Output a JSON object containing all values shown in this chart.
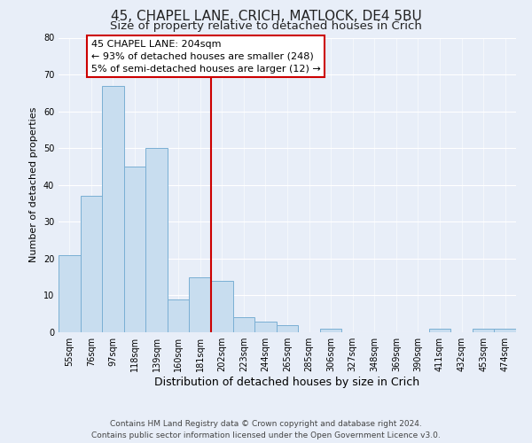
{
  "title": "45, CHAPEL LANE, CRICH, MATLOCK, DE4 5BU",
  "subtitle": "Size of property relative to detached houses in Crich",
  "xlabel": "Distribution of detached houses by size in Crich",
  "ylabel": "Number of detached properties",
  "bar_labels": [
    "55sqm",
    "76sqm",
    "97sqm",
    "118sqm",
    "139sqm",
    "160sqm",
    "181sqm",
    "202sqm",
    "223sqm",
    "244sqm",
    "265sqm",
    "285sqm",
    "306sqm",
    "327sqm",
    "348sqm",
    "369sqm",
    "390sqm",
    "411sqm",
    "432sqm",
    "453sqm",
    "474sqm"
  ],
  "bar_values": [
    21,
    37,
    67,
    45,
    50,
    9,
    15,
    14,
    4,
    3,
    2,
    0,
    1,
    0,
    0,
    0,
    0,
    1,
    0,
    1,
    1
  ],
  "bar_color": "#c8ddef",
  "bar_edge_color": "#7aafd4",
  "vline_color": "#cc0000",
  "annotation_title": "45 CHAPEL LANE: 204sqm",
  "annotation_line1": "← 93% of detached houses are smaller (248)",
  "annotation_line2": "5% of semi-detached houses are larger (12) →",
  "annotation_box_facecolor": "#ffffff",
  "annotation_box_edgecolor": "#cc0000",
  "ylim": [
    0,
    80
  ],
  "yticks": [
    0,
    10,
    20,
    30,
    40,
    50,
    60,
    70,
    80
  ],
  "background_color": "#e8eef8",
  "grid_color": "#ffffff",
  "footer_line1": "Contains HM Land Registry data © Crown copyright and database right 2024.",
  "footer_line2": "Contains public sector information licensed under the Open Government Licence v3.0.",
  "title_fontsize": 11,
  "subtitle_fontsize": 9.5,
  "xlabel_fontsize": 9,
  "ylabel_fontsize": 8,
  "tick_fontsize": 7,
  "annotation_fontsize": 8,
  "footer_fontsize": 6.5
}
